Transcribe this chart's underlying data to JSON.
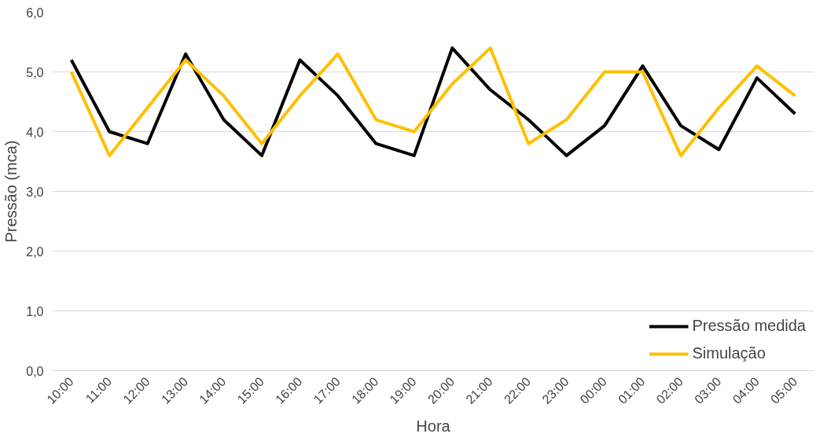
{
  "chart_data": {
    "type": "line",
    "xlabel": "Hora",
    "ylabel": "Pressão (mca)",
    "categories": [
      "10:00",
      "11:00",
      "12:00",
      "13:00",
      "14:00",
      "15:00",
      "16:00",
      "17:00",
      "18:00",
      "19:00",
      "20:00",
      "21:00",
      "22:00",
      "23:00",
      "00:00",
      "01:00",
      "02:00",
      "03:00",
      "04:00",
      "05:00"
    ],
    "series": [
      {
        "name": "Pressão medida",
        "color": "#000000",
        "values": [
          5.2,
          4.0,
          3.8,
          5.3,
          4.2,
          3.6,
          5.2,
          4.6,
          3.8,
          3.6,
          5.4,
          4.7,
          4.2,
          3.6,
          4.1,
          5.1,
          4.1,
          3.7,
          4.9,
          4.3
        ]
      },
      {
        "name": "Simulação",
        "color": "#ffc000",
        "values": [
          5.0,
          3.6,
          4.4,
          5.2,
          4.6,
          3.8,
          4.6,
          5.3,
          4.2,
          4.0,
          4.8,
          5.4,
          3.8,
          4.2,
          5.0,
          5.0,
          3.6,
          4.4,
          5.1,
          4.6
        ]
      }
    ],
    "ylim": [
      0,
      6
    ],
    "yticks": [
      {
        "value": 0,
        "label": "0,0"
      },
      {
        "value": 1,
        "label": "1,0"
      },
      {
        "value": 2,
        "label": "2,0"
      },
      {
        "value": 3,
        "label": "3,0"
      },
      {
        "value": 4,
        "label": "4,0"
      },
      {
        "value": 5,
        "label": "5,0"
      },
      {
        "value": 6,
        "label": "6,0"
      }
    ],
    "grid": "y",
    "legend": "bottom right",
    "marker": "none",
    "line_style": "solid"
  }
}
